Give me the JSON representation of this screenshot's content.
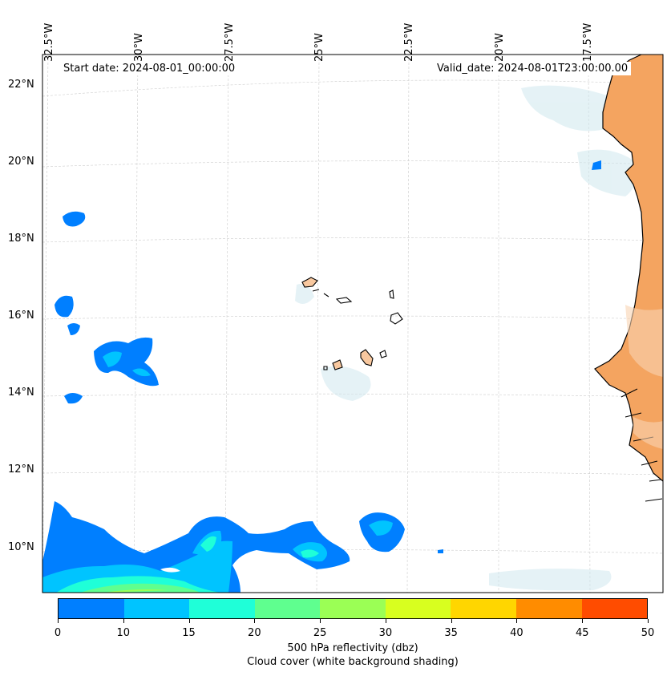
{
  "map": {
    "start_date": "Start date: 2024-08-01_00:00:00",
    "valid_date": "Valid_date: 2024-08-01T23:00:00.00",
    "lon_labels": [
      "32.5°W",
      "30°W",
      "27.5°W",
      "25°W",
      "22.5°W",
      "20°W",
      "17.5°W"
    ],
    "lat_labels": [
      "22°N",
      "20°N",
      "18°N",
      "16°N",
      "14°N",
      "12°N",
      "10°N"
    ],
    "land_color": "#f4a460",
    "colorbar": {
      "ticks": [
        "0",
        "10",
        "15",
        "20",
        "25",
        "30",
        "35",
        "40",
        "45",
        "50"
      ],
      "colors": [
        "#007fff",
        "#00c4ff",
        "#1fffd8",
        "#5fff8f",
        "#9bff55",
        "#d8ff1f",
        "#ffd600",
        "#ff8c00",
        "#ff4c00"
      ],
      "label_line1": "500 hPa reflectivity (dbz)",
      "label_line2": "Cloud cover (white background shading)"
    }
  }
}
